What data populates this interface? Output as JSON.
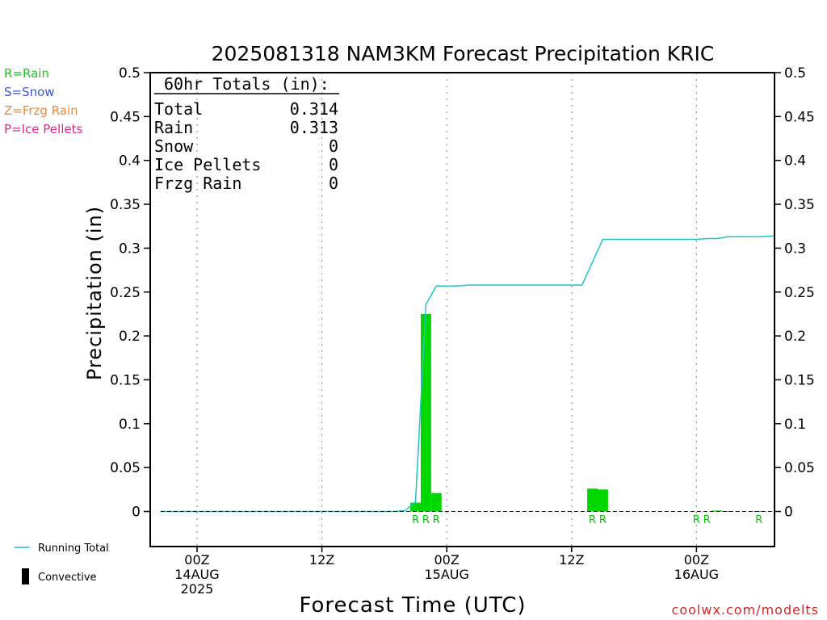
{
  "chart_data": {
    "type": "bar",
    "title": "2025081318 NAM3KM Forecast Precipitation KRIC",
    "xlabel": "Forecast Time (UTC)",
    "ylabel": "Precipitation (in)",
    "ylim": [
      -0.04,
      0.5
    ],
    "xlim_hours": [
      -4.5,
      55.5
    ],
    "y_ticks": [
      0,
      0.05,
      0.1,
      0.15,
      0.2,
      0.25,
      0.3,
      0.35,
      0.4,
      0.45,
      0.5
    ],
    "y_tick_labels": [
      "0",
      "0.05",
      "0.1",
      "0.15",
      "0.2",
      "0.25",
      "0.3",
      "0.35",
      "0.4",
      "0.45",
      "0.5"
    ],
    "x_ticks": [
      {
        "hour": 0,
        "lines": [
          "00Z",
          "14AUG",
          "2025"
        ]
      },
      {
        "hour": 12,
        "lines": [
          "12Z"
        ]
      },
      {
        "hour": 24,
        "lines": [
          "00Z",
          "15AUG"
        ]
      },
      {
        "hour": 36,
        "lines": [
          "12Z"
        ]
      },
      {
        "hour": 48,
        "lines": [
          "00Z",
          "16AUG"
        ]
      }
    ],
    "grid": "vertical dotted",
    "series": [
      {
        "name": "Running Total",
        "kind": "line",
        "color": "#1fc4c4",
        "x": [
          -5,
          19,
          20,
          21,
          22,
          23,
          24,
          25,
          26,
          37,
          38,
          39,
          47,
          48,
          49,
          50,
          51,
          52,
          53,
          54,
          55.5
        ],
        "y": [
          0,
          0,
          0.001,
          0.011,
          0.236,
          0.257,
          0.257,
          0.257,
          0.258,
          0.258,
          0.284,
          0.31,
          0.31,
          0.31,
          0.311,
          0.311,
          0.313,
          0.313,
          0.313,
          0.313,
          0.314
        ]
      },
      {
        "name": "Rain",
        "kind": "bar",
        "color": "#00d700",
        "x": [
          21,
          22,
          23,
          38,
          39,
          50,
          51,
          54
        ],
        "y": [
          0.01,
          0.225,
          0.021,
          0.026,
          0.025,
          0.001,
          0.0005,
          0.0005
        ]
      }
    ],
    "precip_type_markers": {
      "color": "#00c800",
      "x": [
        21,
        22,
        23,
        38,
        39,
        48,
        49,
        54
      ],
      "labels": [
        "R",
        "R",
        "R",
        "R",
        "R",
        "R",
        "R",
        "R"
      ]
    },
    "totals_box": {
      "header": "60hr Totals (in):",
      "rows": [
        {
          "label": "Total",
          "value": "0.314"
        },
        {
          "label": "Rain",
          "value": "0.313"
        },
        {
          "label": "Snow",
          "value": "0"
        },
        {
          "label": "Ice Pellets",
          "value": "0"
        },
        {
          "label": "Frzg Rain",
          "value": "0"
        }
      ]
    },
    "type_legend": [
      {
        "text": "R=Rain",
        "color": "#22c422"
      },
      {
        "text": "S=Snow",
        "color": "#3a55dd"
      },
      {
        "text": "Z=Frzg Rain",
        "color": "#e88a3a"
      },
      {
        "text": "P=Ice Pellets",
        "color": "#e0288a"
      }
    ],
    "bottom_legend": [
      {
        "text": "Running Total",
        "symbol": "line",
        "color": "#1fc4c4"
      },
      {
        "text": "Convective",
        "symbol": "bar",
        "color": "#000000"
      }
    ],
    "watermark": {
      "text": "coolwx.com/modelts",
      "color": "#d02828"
    }
  }
}
